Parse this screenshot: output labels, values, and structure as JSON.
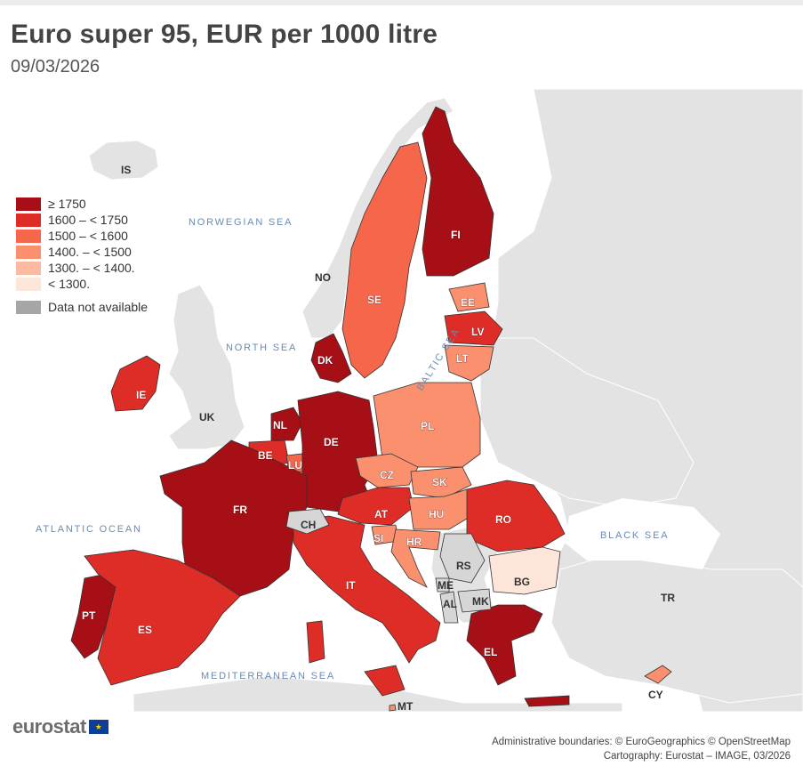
{
  "title": "Euro super 95, EUR per 1000 litre",
  "subtitle": "09/03/2026",
  "legend": {
    "classes": [
      {
        "label": "≥ 1750",
        "color": "#a50f15"
      },
      {
        "label": "1600 – < 1750",
        "color": "#de2d26"
      },
      {
        "label": "1500 – < 1600",
        "color": "#f5664a"
      },
      {
        "label": "1400. – < 1500",
        "color": "#fb906f"
      },
      {
        "label": "1300. – < 1400.",
        "color": "#fcbba1"
      },
      {
        "label": "< 1300.",
        "color": "#fee5d9"
      }
    ],
    "not_available": {
      "label": "Data not available",
      "color": "#a6a6a6"
    }
  },
  "seas": {
    "norwegian": "NORWEGIAN SEA",
    "north": "NORTH SEA",
    "baltic": "BALTIC SEA",
    "atlantic": "ATLANTIC OCEAN",
    "black": "BLACK SEA",
    "mediterranean": "MEDITERRANEAN SEA"
  },
  "countries": {
    "IS": {
      "label": "IS",
      "class": "nodata"
    },
    "NO": {
      "label": "NO",
      "class": "nodata"
    },
    "SE": {
      "label": "SE",
      "class": "1500 – < 1600"
    },
    "FI": {
      "label": "FI",
      "class": "≥ 1750"
    },
    "EE": {
      "label": "EE",
      "class": "1400. – < 1500"
    },
    "LV": {
      "label": "LV",
      "class": "1600 – < 1750"
    },
    "LT": {
      "label": "LT",
      "class": "1400. – < 1500"
    },
    "DK": {
      "label": "DK",
      "class": "≥ 1750"
    },
    "IE": {
      "label": "IE",
      "class": "1600 – < 1750"
    },
    "UK": {
      "label": "UK",
      "class": "nodata"
    },
    "NL": {
      "label": "NL",
      "class": "≥ 1750"
    },
    "BE": {
      "label": "BE",
      "class": "1600 – < 1750"
    },
    "LU": {
      "label": "LU",
      "class": "1500 – < 1600"
    },
    "DE": {
      "label": "DE",
      "class": "≥ 1750"
    },
    "PL": {
      "label": "PL",
      "class": "1400. – < 1500"
    },
    "CZ": {
      "label": "CZ",
      "class": "1400. – < 1500"
    },
    "SK": {
      "label": "SK",
      "class": "1400. – < 1500"
    },
    "AT": {
      "label": "AT",
      "class": "1600 – < 1750"
    },
    "HU": {
      "label": "HU",
      "class": "1400. – < 1500"
    },
    "RO": {
      "label": "RO",
      "class": "1600 – < 1750"
    },
    "FR": {
      "label": "FR",
      "class": "≥ 1750"
    },
    "CH": {
      "label": "CH",
      "class": "nodata"
    },
    "SI": {
      "label": "SI",
      "class": "1400. – < 1500"
    },
    "HR": {
      "label": "HR",
      "class": "1400. – < 1500"
    },
    "IT": {
      "label": "IT",
      "class": "1600 – < 1750"
    },
    "RS": {
      "label": "RS",
      "class": "nodata"
    },
    "ME": {
      "label": "ME",
      "class": "nodata"
    },
    "AL": {
      "label": "AL",
      "class": "nodata"
    },
    "MK": {
      "label": "MK",
      "class": "nodata"
    },
    "BG": {
      "label": "BG",
      "class": "< 1300."
    },
    "EL": {
      "label": "EL",
      "class": "≥ 1750"
    },
    "TR": {
      "label": "TR",
      "class": "nodata"
    },
    "CY": {
      "label": "CY",
      "class": "1400. – < 1500"
    },
    "PT": {
      "label": "PT",
      "class": "≥ 1750"
    },
    "ES": {
      "label": "ES",
      "class": "1600 – < 1750"
    },
    "MT": {
      "label": "MT",
      "class": "1400. – < 1500"
    }
  },
  "logo": "eurostat",
  "credits": {
    "line1": "Administrative boundaries: © EuroGeographics © OpenStreetMap",
    "line2": "Cartography: Eurostat – IMAGE, 03/2026"
  }
}
